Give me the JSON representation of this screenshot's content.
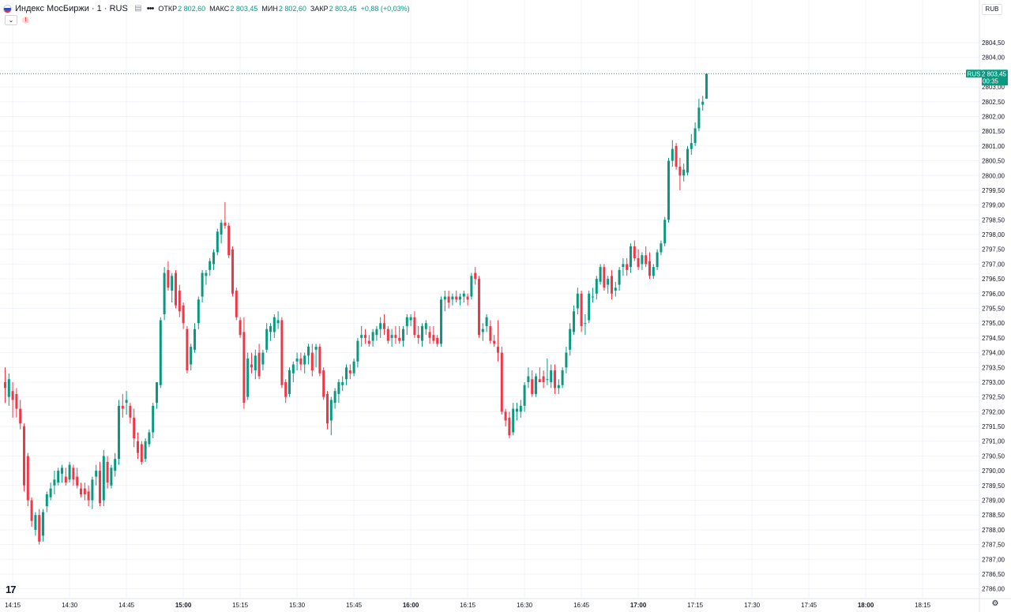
{
  "legend": {
    "title": "Индекс МосБиржи · 1 · RUS",
    "more": "•••",
    "open_label": "ОТКР",
    "open_value": "2 802,60",
    "high_label": "МАКС",
    "high_value": "2 803,45",
    "low_label": "МИН",
    "low_value": "2 802,60",
    "close_label": "ЗАКР",
    "close_value": "2 803,45",
    "change": "+0,88 (+0,03%)"
  },
  "currency": "RUB",
  "last_price": {
    "symbol_badge": "RUS",
    "price": "2 803,45",
    "countdown": "00:35"
  },
  "colors": {
    "up": "#089981",
    "down": "#f23645",
    "grid": "#f0f3fa"
  },
  "icons": [
    "russia-flag-icon",
    "pin-icon",
    "collapse-icon",
    "alert-icon",
    "tradingview-logo",
    "settings-gear-icon"
  ],
  "chart_data": {
    "type": "candlestick",
    "ylim": [
      2785.75,
      2805.25
    ],
    "y_ticks": [
      {
        "v": 2804.5,
        "label": "2804,50"
      },
      {
        "v": 2804.0,
        "label": "2804,00"
      },
      {
        "v": 2803.0,
        "label": "2803,00"
      },
      {
        "v": 2802.5,
        "label": "2802,50"
      },
      {
        "v": 2802.0,
        "label": "2802,00"
      },
      {
        "v": 2801.5,
        "label": "2801,50"
      },
      {
        "v": 2801.0,
        "label": "2801,00"
      },
      {
        "v": 2800.5,
        "label": "2800,50"
      },
      {
        "v": 2800.0,
        "label": "2800,00"
      },
      {
        "v": 2799.5,
        "label": "2799,50"
      },
      {
        "v": 2799.0,
        "label": "2799,00"
      },
      {
        "v": 2798.5,
        "label": "2798,50"
      },
      {
        "v": 2798.0,
        "label": "2798,00"
      },
      {
        "v": 2797.5,
        "label": "2797,50"
      },
      {
        "v": 2797.0,
        "label": "2797,00"
      },
      {
        "v": 2796.5,
        "label": "2796,50"
      },
      {
        "v": 2796.0,
        "label": "2796,00"
      },
      {
        "v": 2795.5,
        "label": "2795,50"
      },
      {
        "v": 2795.0,
        "label": "2795,00"
      },
      {
        "v": 2794.5,
        "label": "2794,50"
      },
      {
        "v": 2794.0,
        "label": "2794,00"
      },
      {
        "v": 2793.5,
        "label": "2793,50"
      },
      {
        "v": 2793.0,
        "label": "2793,00"
      },
      {
        "v": 2792.5,
        "label": "2792,50"
      },
      {
        "v": 2792.0,
        "label": "2792,00"
      },
      {
        "v": 2791.5,
        "label": "2791,50"
      },
      {
        "v": 2791.0,
        "label": "2791,00"
      },
      {
        "v": 2790.5,
        "label": "2790,50"
      },
      {
        "v": 2790.0,
        "label": "2790,00"
      },
      {
        "v": 2789.5,
        "label": "2789,50"
      },
      {
        "v": 2789.0,
        "label": "2789,00"
      },
      {
        "v": 2788.5,
        "label": "2788,50"
      },
      {
        "v": 2788.0,
        "label": "2788,00"
      },
      {
        "v": 2787.5,
        "label": "2787,50"
      },
      {
        "v": 2787.0,
        "label": "2787,00"
      },
      {
        "v": 2786.5,
        "label": "2786,50"
      },
      {
        "v": 2786.0,
        "label": "2786,00"
      }
    ],
    "x_ticks": [
      {
        "t": 2,
        "label": "14:15"
      },
      {
        "t": 17,
        "label": "14:30"
      },
      {
        "t": 32,
        "label": "14:45"
      },
      {
        "t": 47,
        "label": "15:00",
        "bold": true
      },
      {
        "t": 62,
        "label": "15:15"
      },
      {
        "t": 77,
        "label": "15:30"
      },
      {
        "t": 92,
        "label": "15:45"
      },
      {
        "t": 107,
        "label": "16:00",
        "bold": true
      },
      {
        "t": 122,
        "label": "16:15"
      },
      {
        "t": 137,
        "label": "16:30"
      },
      {
        "t": 152,
        "label": "16:45"
      },
      {
        "t": 167,
        "label": "17:00",
        "bold": true
      },
      {
        "t": 182,
        "label": "17:15"
      },
      {
        "t": 197,
        "label": "17:30"
      },
      {
        "t": 212,
        "label": "17:45"
      },
      {
        "t": 227,
        "label": "18:00",
        "bold": true
      },
      {
        "t": 242,
        "label": "18:15"
      }
    ],
    "last_price": 2803.45,
    "candles": [
      [
        2793.0,
        2793.5,
        2792.3,
        2792.8
      ],
      [
        2792.5,
        2793.3,
        2792.2,
        2793.1
      ],
      [
        2792.7,
        2793.0,
        2791.8,
        2792.4
      ],
      [
        2792.6,
        2792.8,
        2791.8,
        2792.1
      ],
      [
        2792.1,
        2792.4,
        2791.4,
        2791.6
      ],
      [
        2791.5,
        2791.6,
        2789.3,
        2789.5
      ],
      [
        2790.5,
        2790.6,
        2788.8,
        2789.0
      ],
      [
        2789.0,
        2789.1,
        2788.1,
        2788.3
      ],
      [
        2788.0,
        2788.6,
        2787.8,
        2788.5
      ],
      [
        2788.5,
        2788.7,
        2787.5,
        2787.6
      ],
      [
        2787.8,
        2788.7,
        2787.6,
        2788.6
      ],
      [
        2788.8,
        2789.3,
        2788.6,
        2789.2
      ],
      [
        2789.1,
        2789.6,
        2789.0,
        2789.4
      ],
      [
        2789.5,
        2790.0,
        2789.2,
        2789.7
      ],
      [
        2789.6,
        2790.1,
        2789.5,
        2790.0
      ],
      [
        2789.9,
        2790.2,
        2789.6,
        2790.1
      ],
      [
        2789.8,
        2790.1,
        2789.5,
        2789.6
      ],
      [
        2789.7,
        2790.3,
        2789.6,
        2790.2
      ],
      [
        2790.1,
        2790.2,
        2789.5,
        2789.7
      ],
      [
        2789.8,
        2790.1,
        2789.4,
        2789.5
      ],
      [
        2789.4,
        2789.6,
        2789.1,
        2789.2
      ],
      [
        2789.4,
        2789.6,
        2789.0,
        2789.2
      ],
      [
        2789.3,
        2789.5,
        2788.8,
        2789.0
      ],
      [
        2789.0,
        2789.8,
        2788.7,
        2789.7
      ],
      [
        2789.8,
        2790.2,
        2789.5,
        2790.0
      ],
      [
        2790.0,
        2790.3,
        2788.8,
        2788.9
      ],
      [
        2789.0,
        2790.7,
        2788.8,
        2790.5
      ],
      [
        2790.3,
        2790.5,
        2789.4,
        2789.6
      ],
      [
        2789.5,
        2790.2,
        2789.4,
        2790.1
      ],
      [
        2790.0,
        2790.6,
        2789.8,
        2790.4
      ],
      [
        2790.4,
        2792.4,
        2790.2,
        2792.2
      ],
      [
        2792.2,
        2792.6,
        2791.8,
        2792.1
      ],
      [
        2792.3,
        2792.7,
        2791.9,
        2792.4
      ],
      [
        2792.2,
        2792.3,
        2791.6,
        2791.8
      ],
      [
        2791.8,
        2792.1,
        2790.8,
        2791.1
      ],
      [
        2791.0,
        2791.3,
        2790.4,
        2790.6
      ],
      [
        2790.9,
        2791.0,
        2790.2,
        2790.3
      ],
      [
        2790.4,
        2791.1,
        2790.3,
        2791.0
      ],
      [
        2790.9,
        2791.4,
        2790.8,
        2791.3
      ],
      [
        2791.3,
        2792.3,
        2791.1,
        2792.2
      ],
      [
        2792.3,
        2793.0,
        2792.1,
        2793.0
      ],
      [
        2792.9,
        2795.2,
        2792.8,
        2795.1
      ],
      [
        2795.3,
        2796.9,
        2795.1,
        2796.7
      ],
      [
        2796.8,
        2797.1,
        2796.1,
        2796.2
      ],
      [
        2796.1,
        2796.7,
        2795.7,
        2796.6
      ],
      [
        2796.7,
        2796.8,
        2795.5,
        2795.6
      ],
      [
        2796.1,
        2796.3,
        2795.2,
        2795.4
      ],
      [
        2795.6,
        2795.7,
        2794.8,
        2795.0
      ],
      [
        2794.8,
        2794.9,
        2793.3,
        2793.4
      ],
      [
        2793.6,
        2794.3,
        2793.4,
        2794.2
      ],
      [
        2794.1,
        2795.0,
        2794.0,
        2794.8
      ],
      [
        2795.0,
        2795.9,
        2794.8,
        2795.8
      ],
      [
        2795.9,
        2796.8,
        2795.7,
        2796.7
      ],
      [
        2796.6,
        2796.8,
        2796.3,
        2796.7
      ],
      [
        2796.8,
        2797.2,
        2796.6,
        2797.1
      ],
      [
        2797.0,
        2797.5,
        2796.8,
        2797.4
      ],
      [
        2797.4,
        2798.2,
        2797.3,
        2798.1
      ],
      [
        2798.0,
        2798.5,
        2797.7,
        2798.4
      ],
      [
        2798.4,
        2799.1,
        2798.2,
        2798.3
      ],
      [
        2798.3,
        2798.4,
        2797.2,
        2797.3
      ],
      [
        2797.5,
        2797.6,
        2795.9,
        2796.0
      ],
      [
        2796.1,
        2796.2,
        2795.1,
        2795.2
      ],
      [
        2795.1,
        2795.2,
        2794.5,
        2794.6
      ],
      [
        2794.7,
        2795.2,
        2792.1,
        2792.3
      ],
      [
        2792.5,
        2794.0,
        2792.4,
        2793.8
      ],
      [
        2793.6,
        2794.0,
        2793.3,
        2793.5
      ],
      [
        2793.4,
        2794.1,
        2793.1,
        2793.9
      ],
      [
        2794.0,
        2794.3,
        2793.1,
        2793.2
      ],
      [
        2793.6,
        2794.1,
        2793.4,
        2794.0
      ],
      [
        2794.1,
        2795.0,
        2794.0,
        2794.8
      ],
      [
        2794.7,
        2795.0,
        2794.4,
        2794.9
      ],
      [
        2794.7,
        2795.3,
        2794.5,
        2795.2
      ],
      [
        2795.0,
        2795.4,
        2794.8,
        2795.1
      ],
      [
        2795.1,
        2795.2,
        2792.8,
        2792.9
      ],
      [
        2793.0,
        2793.1,
        2792.3,
        2792.5
      ],
      [
        2792.6,
        2793.5,
        2792.5,
        2793.4
      ],
      [
        2793.3,
        2793.7,
        2793.0,
        2793.6
      ],
      [
        2793.7,
        2794.0,
        2793.4,
        2793.8
      ],
      [
        2793.8,
        2794.0,
        2793.4,
        2793.6
      ],
      [
        2793.6,
        2794.0,
        2793.3,
        2793.9
      ],
      [
        2793.9,
        2794.3,
        2793.6,
        2794.2
      ],
      [
        2794.0,
        2794.3,
        2793.2,
        2793.4
      ],
      [
        2794.1,
        2794.3,
        2793.5,
        2794.2
      ],
      [
        2794.2,
        2794.3,
        2793.2,
        2793.3
      ],
      [
        2793.4,
        2793.5,
        2792.4,
        2792.5
      ],
      [
        2792.6,
        2792.7,
        2791.4,
        2791.6
      ],
      [
        2791.7,
        2792.5,
        2791.2,
        2792.4
      ],
      [
        2792.3,
        2792.8,
        2792.1,
        2792.7
      ],
      [
        2792.6,
        2793.1,
        2792.3,
        2793.0
      ],
      [
        2792.9,
        2793.2,
        2792.7,
        2793.0
      ],
      [
        2793.1,
        2793.6,
        2792.9,
        2793.5
      ],
      [
        2793.4,
        2793.6,
        2793.1,
        2793.3
      ],
      [
        2793.3,
        2793.8,
        2793.2,
        2793.7
      ],
      [
        2793.7,
        2794.5,
        2793.5,
        2794.4
      ],
      [
        2794.5,
        2794.9,
        2794.2,
        2794.6
      ],
      [
        2794.6,
        2794.8,
        2794.3,
        2794.5
      ],
      [
        2794.4,
        2794.6,
        2794.2,
        2794.3
      ],
      [
        2794.4,
        2794.8,
        2794.2,
        2794.7
      ],
      [
        2794.6,
        2794.9,
        2794.4,
        2794.8
      ],
      [
        2794.8,
        2795.2,
        2794.5,
        2795.0
      ],
      [
        2795.0,
        2795.3,
        2794.6,
        2794.8
      ],
      [
        2794.8,
        2794.9,
        2794.3,
        2794.4
      ],
      [
        2794.5,
        2794.8,
        2794.2,
        2794.6
      ],
      [
        2794.6,
        2794.9,
        2794.3,
        2794.5
      ],
      [
        2794.5,
        2794.9,
        2794.3,
        2794.4
      ],
      [
        2794.4,
        2794.9,
        2794.2,
        2794.8
      ],
      [
        2794.9,
        2795.3,
        2794.6,
        2795.2
      ],
      [
        2795.1,
        2795.3,
        2794.9,
        2795.2
      ],
      [
        2795.2,
        2795.4,
        2794.5,
        2794.6
      ],
      [
        2794.6,
        2794.9,
        2794.3,
        2794.5
      ],
      [
        2794.4,
        2795.0,
        2794.2,
        2794.9
      ],
      [
        2794.8,
        2795.1,
        2794.6,
        2795.0
      ],
      [
        2794.7,
        2794.9,
        2794.3,
        2794.5
      ],
      [
        2794.6,
        2794.9,
        2794.3,
        2794.4
      ],
      [
        2794.5,
        2794.6,
        2794.2,
        2794.3
      ],
      [
        2794.3,
        2795.9,
        2794.2,
        2795.8
      ],
      [
        2795.8,
        2796.1,
        2795.4,
        2795.9
      ],
      [
        2795.9,
        2796.1,
        2795.5,
        2795.7
      ],
      [
        2795.8,
        2796.0,
        2795.6,
        2795.9
      ],
      [
        2795.9,
        2796.1,
        2795.7,
        2795.8
      ],
      [
        2795.8,
        2796.0,
        2795.6,
        2795.9
      ],
      [
        2795.9,
        2796.1,
        2795.7,
        2796.0
      ],
      [
        2795.9,
        2796.0,
        2795.6,
        2795.8
      ],
      [
        2795.9,
        2796.7,
        2795.8,
        2796.6
      ],
      [
        2796.7,
        2796.9,
        2796.3,
        2796.5
      ],
      [
        2796.5,
        2796.6,
        2794.5,
        2794.6
      ],
      [
        2794.7,
        2795.0,
        2794.4,
        2794.8
      ],
      [
        2794.9,
        2795.3,
        2794.7,
        2795.2
      ],
      [
        2794.9,
        2795.1,
        2794.3,
        2794.4
      ],
      [
        2794.4,
        2794.6,
        2794.2,
        2794.3
      ],
      [
        2794.2,
        2795.1,
        2793.7,
        2794.0
      ],
      [
        2794.0,
        2794.2,
        2791.9,
        2792.0
      ],
      [
        2792.0,
        2792.1,
        2791.5,
        2791.7
      ],
      [
        2791.8,
        2792.0,
        2791.1,
        2791.2
      ],
      [
        2791.3,
        2792.3,
        2791.2,
        2792.1
      ],
      [
        2792.0,
        2792.3,
        2791.7,
        2792.1
      ],
      [
        2792.0,
        2792.4,
        2791.8,
        2792.2
      ],
      [
        2792.2,
        2793.0,
        2792.0,
        2792.9
      ],
      [
        2793.0,
        2793.5,
        2792.8,
        2793.2
      ],
      [
        2793.1,
        2793.4,
        2792.5,
        2792.6
      ],
      [
        2792.6,
        2793.3,
        2792.5,
        2793.2
      ],
      [
        2793.1,
        2793.5,
        2793.0,
        2793.0
      ],
      [
        2793.2,
        2793.4,
        2792.8,
        2793.0
      ],
      [
        2793.1,
        2793.8,
        2792.9,
        2793.1
      ],
      [
        2793.0,
        2793.6,
        2792.8,
        2793.4
      ],
      [
        2793.4,
        2793.6,
        2792.6,
        2792.8
      ],
      [
        2792.8,
        2793.1,
        2792.6,
        2792.9
      ],
      [
        2792.9,
        2793.5,
        2792.8,
        2793.4
      ],
      [
        2793.5,
        2794.2,
        2793.3,
        2794.0
      ],
      [
        2794.1,
        2795.0,
        2793.9,
        2794.8
      ],
      [
        2794.7,
        2795.6,
        2794.6,
        2795.4
      ],
      [
        2795.5,
        2796.2,
        2795.3,
        2796.0
      ],
      [
        2796.0,
        2796.1,
        2794.7,
        2794.9
      ],
      [
        2795.0,
        2795.3,
        2794.6,
        2795.0
      ],
      [
        2795.1,
        2796.1,
        2795.0,
        2796.0
      ],
      [
        2795.9,
        2796.2,
        2795.7,
        2795.9
      ],
      [
        2796.0,
        2796.6,
        2795.8,
        2796.5
      ],
      [
        2796.4,
        2797.0,
        2796.3,
        2796.9
      ],
      [
        2796.9,
        2797.0,
        2796.1,
        2796.2
      ],
      [
        2796.3,
        2796.6,
        2796.0,
        2796.5
      ],
      [
        2796.6,
        2796.8,
        2795.8,
        2796.0
      ],
      [
        2796.1,
        2796.4,
        2795.9,
        2796.2
      ],
      [
        2796.3,
        2796.9,
        2796.1,
        2796.8
      ],
      [
        2796.9,
        2797.2,
        2796.6,
        2797.0
      ],
      [
        2797.0,
        2797.2,
        2796.6,
        2796.8
      ],
      [
        2796.9,
        2797.7,
        2796.7,
        2797.6
      ],
      [
        2797.6,
        2797.8,
        2797.1,
        2797.2
      ],
      [
        2797.2,
        2797.5,
        2796.8,
        2796.9
      ],
      [
        2797.0,
        2797.4,
        2796.8,
        2797.3
      ],
      [
        2797.3,
        2797.6,
        2796.9,
        2797.0
      ],
      [
        2797.1,
        2797.4,
        2796.5,
        2796.6
      ],
      [
        2796.6,
        2797.0,
        2796.5,
        2796.9
      ],
      [
        2796.9,
        2797.5,
        2796.8,
        2797.4
      ],
      [
        2797.4,
        2797.8,
        2797.3,
        2797.7
      ],
      [
        2797.7,
        2798.6,
        2797.6,
        2798.5
      ],
      [
        2798.5,
        2800.6,
        2798.4,
        2800.5
      ],
      [
        2800.5,
        2801.2,
        2800.3,
        2800.9
      ],
      [
        2801.0,
        2801.1,
        2800.2,
        2800.3
      ],
      [
        2800.3,
        2800.6,
        2799.5,
        2800.0
      ],
      [
        2800.0,
        2800.4,
        2799.8,
        2800.2
      ],
      [
        2800.1,
        2801.0,
        2800.0,
        2800.9
      ],
      [
        2800.9,
        2801.4,
        2800.7,
        2801.1
      ],
      [
        2801.1,
        2801.8,
        2801.0,
        2801.6
      ],
      [
        2801.6,
        2802.6,
        2801.5,
        2802.3
      ],
      [
        2802.4,
        2802.7,
        2802.2,
        2802.5
      ],
      [
        2802.6,
        2803.45,
        2802.6,
        2803.45
      ]
    ]
  }
}
